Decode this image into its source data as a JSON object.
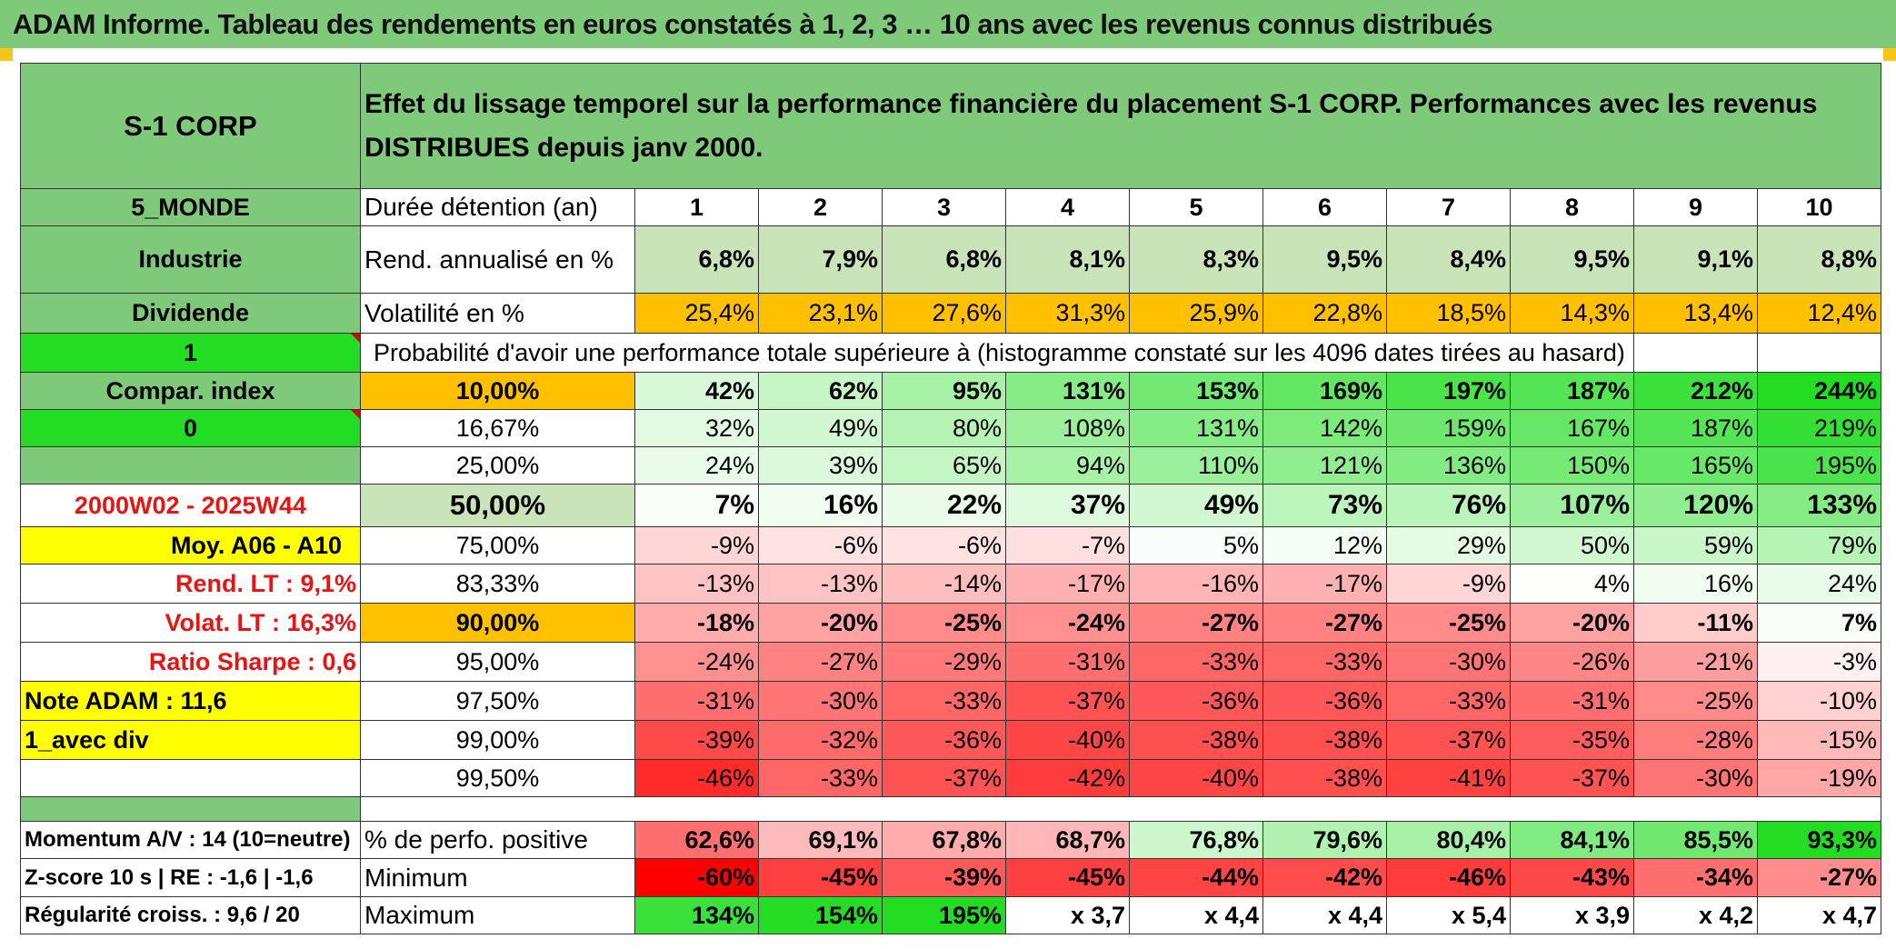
{
  "title": "ADAM Informe. Tableau des rendements en euros constatés à 1, 2, 3 … 10 ans avec les revenus connus distribués",
  "header": {
    "fund_name": "S-1 CORP",
    "description": "Effet du lissage temporel sur la performance financière du placement S-1 CORP. Performances avec les revenus DISTRIBUES depuis janv 2000."
  },
  "side": {
    "zone": "5_MONDE",
    "sector": "Industrie",
    "dividend": "Dividende",
    "flag1": "1",
    "compare_label": "Compar. index",
    "flag0": "0",
    "period": "2000W02 - 2025W44",
    "avg_label": "Moy. A06 - A10",
    "rend_lt": "Rend. LT :   9,1%",
    "volat_lt": "Volat. LT :   16,3%",
    "sharpe": "Ratio Sharpe :   0,6",
    "note": "Note ADAM : 11,6",
    "mode": "1_avec div",
    "momentum": "Momentum A/V : 14 (10=neutre)",
    "zscore": "Z-score 10 s | RE : -1,6 | -1,6",
    "regularity": "Régularité croiss. : 9,6 / 20"
  },
  "labels": {
    "duration": "Durée détention (an)",
    "annual": "Rend. annualisé en %",
    "volatility": "Volatilité en %",
    "probability": "Probabilité d'avoir une performance totale supérieure à (histogramme constaté sur les 4096 dates tirées au hasard)",
    "positive": "% de perfo. positive",
    "minimum": "Minimum",
    "maximum": "Maximum"
  },
  "years": [
    "1",
    "2",
    "3",
    "4",
    "5",
    "6",
    "7",
    "8",
    "9",
    "10"
  ],
  "annual_returns": [
    "6,8%",
    "7,9%",
    "6,8%",
    "8,1%",
    "8,3%",
    "9,5%",
    "8,4%",
    "9,5%",
    "9,1%",
    "8,8%"
  ],
  "volatility": [
    "25,4%",
    "23,1%",
    "27,6%",
    "31,3%",
    "25,9%",
    "22,8%",
    "18,5%",
    "14,3%",
    "13,4%",
    "12,4%"
  ],
  "percentiles": [
    {
      "p": "10,00%",
      "values": [
        "42%",
        "62%",
        "95%",
        "131%",
        "153%",
        "169%",
        "197%",
        "187%",
        "212%",
        "244%"
      ]
    },
    {
      "p": "16,67%",
      "values": [
        "32%",
        "49%",
        "80%",
        "108%",
        "131%",
        "142%",
        "159%",
        "167%",
        "187%",
        "219%"
      ]
    },
    {
      "p": "25,00%",
      "values": [
        "24%",
        "39%",
        "65%",
        "94%",
        "110%",
        "121%",
        "136%",
        "150%",
        "165%",
        "195%"
      ]
    },
    {
      "p": "50,00%",
      "values": [
        "7%",
        "16%",
        "22%",
        "37%",
        "49%",
        "73%",
        "76%",
        "107%",
        "120%",
        "133%"
      ]
    },
    {
      "p": "75,00%",
      "values": [
        "-9%",
        "-6%",
        "-6%",
        "-7%",
        "5%",
        "12%",
        "29%",
        "50%",
        "59%",
        "79%"
      ]
    },
    {
      "p": "83,33%",
      "values": [
        "-13%",
        "-13%",
        "-14%",
        "-17%",
        "-16%",
        "-17%",
        "-9%",
        "4%",
        "16%",
        "24%"
      ]
    },
    {
      "p": "90,00%",
      "values": [
        "-18%",
        "-20%",
        "-25%",
        "-24%",
        "-27%",
        "-27%",
        "-25%",
        "-20%",
        "-11%",
        "7%"
      ]
    },
    {
      "p": "95,00%",
      "values": [
        "-24%",
        "-27%",
        "-29%",
        "-31%",
        "-33%",
        "-33%",
        "-30%",
        "-26%",
        "-21%",
        "-3%"
      ]
    },
    {
      "p": "97,50%",
      "values": [
        "-31%",
        "-30%",
        "-33%",
        "-37%",
        "-36%",
        "-36%",
        "-33%",
        "-31%",
        "-25%",
        "-10%"
      ]
    },
    {
      "p": "99,00%",
      "values": [
        "-39%",
        "-32%",
        "-36%",
        "-40%",
        "-38%",
        "-38%",
        "-37%",
        "-35%",
        "-28%",
        "-15%"
      ]
    },
    {
      "p": "99,50%",
      "values": [
        "-46%",
        "-33%",
        "-37%",
        "-42%",
        "-40%",
        "-38%",
        "-41%",
        "-37%",
        "-30%",
        "-19%"
      ]
    }
  ],
  "positive_pct": [
    "62,6%",
    "69,1%",
    "67,8%",
    "68,7%",
    "76,8%",
    "79,6%",
    "80,4%",
    "84,1%",
    "85,5%",
    "93,3%"
  ],
  "minimum": [
    "-60%",
    "-45%",
    "-39%",
    "-45%",
    "-44%",
    "-42%",
    "-46%",
    "-43%",
    "-34%",
    "-27%"
  ],
  "maximum": [
    "134%",
    "154%",
    "195%",
    "x 3,7",
    "x 4,4",
    "x 4,4",
    "x 5,4",
    "x 3,9",
    "x 4,2",
    "x 4,7"
  ],
  "colors": {
    "header_green": "#7fc97a",
    "light_green": "#c9e4b8",
    "bright_green": "#22dd22",
    "orange": "#ffc000",
    "yellow": "#ffff00",
    "red_text": "#e81313"
  }
}
